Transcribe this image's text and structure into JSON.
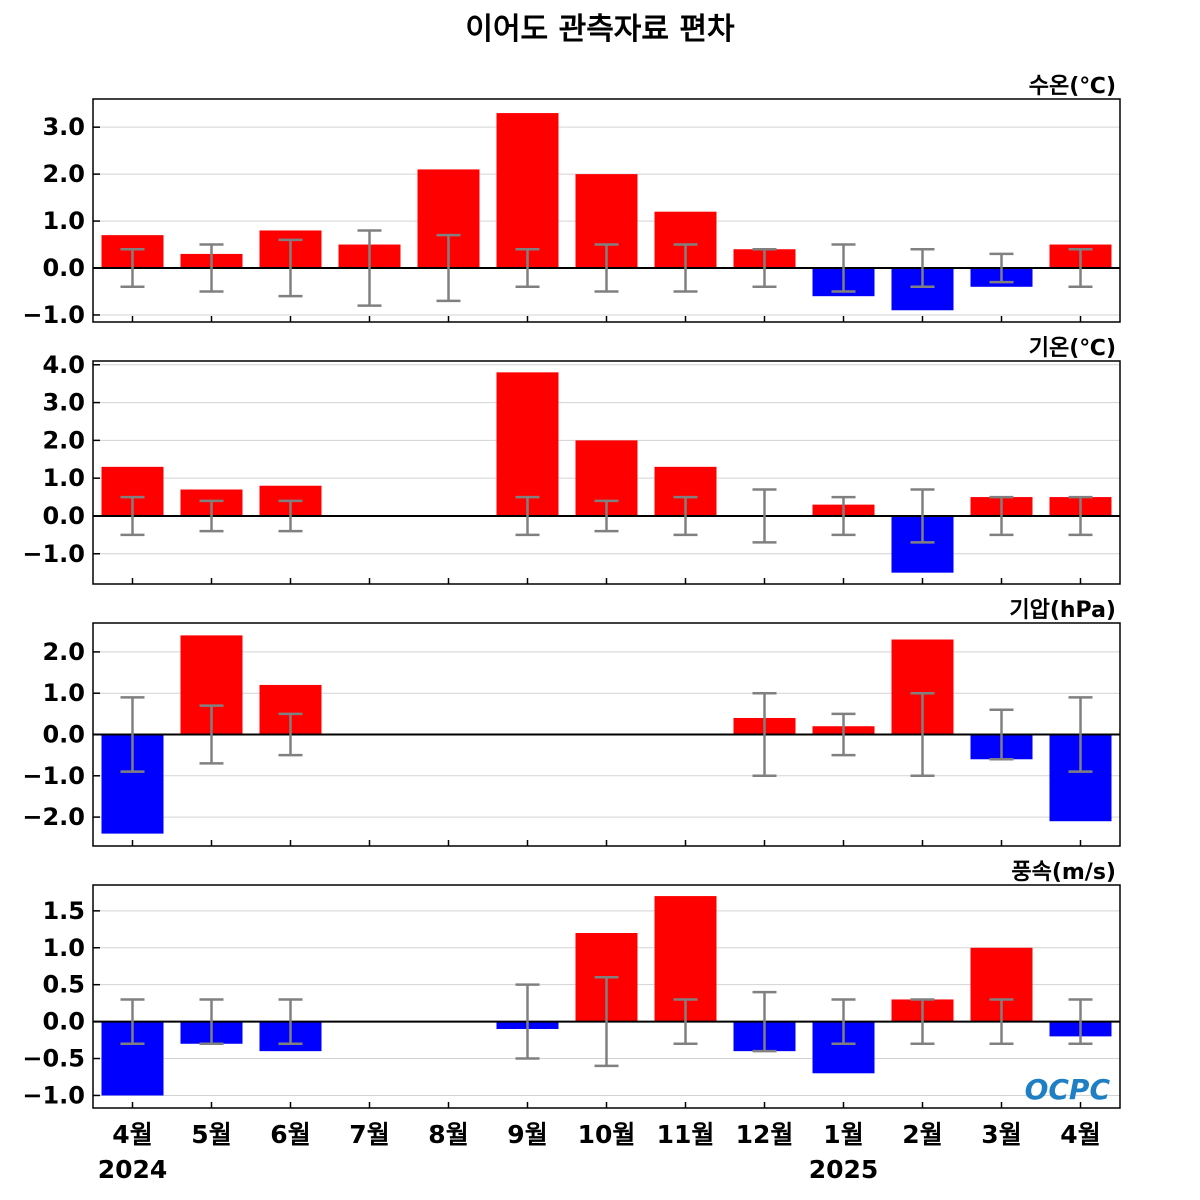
{
  "title": "이어도 관측자료 편차",
  "logo_text": "OCPC",
  "colors": {
    "positive": "#ff0000",
    "negative": "#0000ff",
    "error_bar": "#808080",
    "grid": "#d3d3d3",
    "zero_line": "#000000"
  },
  "chart_data": [
    {
      "type": "bar",
      "unit_label": "수온(℃)",
      "categories": [
        "4월",
        "5월",
        "6월",
        "7월",
        "8월",
        "9월",
        "10월",
        "11월",
        "12월",
        "1월",
        "2월",
        "3월",
        "4월"
      ],
      "values": [
        0.7,
        0.3,
        0.8,
        0.5,
        2.1,
        3.3,
        2.0,
        1.2,
        0.4,
        -0.6,
        -0.9,
        -0.4,
        0.5
      ],
      "error_upper": [
        0.4,
        0.5,
        0.6,
        0.8,
        0.7,
        0.4,
        0.5,
        0.5,
        0.4,
        0.5,
        0.4,
        0.3,
        0.4
      ],
      "error_lower": [
        -0.4,
        -0.5,
        -0.6,
        -0.8,
        -0.7,
        -0.4,
        -0.5,
        -0.5,
        -0.4,
        -0.5,
        -0.4,
        -0.3,
        -0.4
      ],
      "ylim": [
        -1.15,
        3.6
      ],
      "yticks": [
        -1.0,
        0.0,
        1.0,
        2.0,
        3.0
      ],
      "ytick_labels": [
        "−1.0",
        "0.0",
        "1.0",
        "2.0",
        "3.0"
      ],
      "grid": true
    },
    {
      "type": "bar",
      "unit_label": "기온(℃)",
      "categories": [
        "4월",
        "5월",
        "6월",
        "7월",
        "8월",
        "9월",
        "10월",
        "11월",
        "12월",
        "1월",
        "2월",
        "3월",
        "4월"
      ],
      "values": [
        1.3,
        0.7,
        0.8,
        null,
        null,
        3.8,
        2.0,
        1.3,
        0.0,
        0.3,
        -1.5,
        0.5,
        0.5
      ],
      "error_upper": [
        0.5,
        0.4,
        0.4,
        null,
        null,
        0.5,
        0.4,
        0.5,
        0.7,
        0.5,
        0.7,
        0.5,
        0.5
      ],
      "error_lower": [
        -0.5,
        -0.4,
        -0.4,
        null,
        null,
        -0.5,
        -0.4,
        -0.5,
        -0.7,
        -0.5,
        -0.7,
        -0.5,
        -0.5
      ],
      "ylim": [
        -1.8,
        4.1
      ],
      "yticks": [
        -1.0,
        0.0,
        1.0,
        2.0,
        3.0,
        4.0
      ],
      "ytick_labels": [
        "−1.0",
        "0.0",
        "1.0",
        "2.0",
        "3.0",
        "4.0"
      ],
      "grid": true
    },
    {
      "type": "bar",
      "unit_label": "기압(hPa)",
      "categories": [
        "4월",
        "5월",
        "6월",
        "7월",
        "8월",
        "9월",
        "10월",
        "11월",
        "12월",
        "1월",
        "2월",
        "3월",
        "4월"
      ],
      "values": [
        -2.4,
        2.4,
        1.2,
        null,
        null,
        null,
        null,
        null,
        0.4,
        0.2,
        2.3,
        -0.6,
        -2.1
      ],
      "error_upper": [
        0.9,
        0.7,
        0.5,
        null,
        null,
        null,
        null,
        null,
        1.0,
        0.5,
        1.0,
        0.6,
        0.9
      ],
      "error_lower": [
        -0.9,
        -0.7,
        -0.5,
        null,
        null,
        null,
        null,
        null,
        -1.0,
        -0.5,
        -1.0,
        -0.6,
        -0.9
      ],
      "ylim": [
        -2.7,
        2.7
      ],
      "yticks": [
        -2.0,
        -1.0,
        0.0,
        1.0,
        2.0
      ],
      "ytick_labels": [
        "−2.0",
        "−1.0",
        "0.0",
        "1.0",
        "2.0"
      ],
      "grid": true
    },
    {
      "type": "bar",
      "unit_label": "풍속(m/s)",
      "categories": [
        "4월",
        "5월",
        "6월",
        "7월",
        "8월",
        "9월",
        "10월",
        "11월",
        "12월",
        "1월",
        "2월",
        "3월",
        "4월"
      ],
      "values": [
        -1.0,
        -0.3,
        -0.4,
        null,
        null,
        -0.1,
        1.2,
        1.7,
        -0.4,
        -0.7,
        0.3,
        1.0,
        -0.2
      ],
      "error_upper": [
        0.3,
        0.3,
        0.3,
        null,
        null,
        0.5,
        0.6,
        0.3,
        0.4,
        0.3,
        0.3,
        0.3,
        0.3
      ],
      "error_lower": [
        -0.3,
        -0.3,
        -0.3,
        null,
        null,
        -0.5,
        -0.6,
        -0.3,
        -0.4,
        -0.3,
        -0.3,
        -0.3,
        -0.3
      ],
      "ylim": [
        -1.17,
        1.85
      ],
      "yticks": [
        -1.0,
        -0.5,
        0.0,
        0.5,
        1.0,
        1.5
      ],
      "ytick_labels": [
        "−1.0",
        "−0.5",
        "0.0",
        "0.5",
        "1.0",
        "1.5"
      ],
      "grid": true
    }
  ],
  "x_axis": {
    "months": [
      "4월",
      "5월",
      "6월",
      "7월",
      "8월",
      "9월",
      "10월",
      "11월",
      "12월",
      "1월",
      "2월",
      "3월",
      "4월"
    ],
    "years": [
      {
        "label": "2024",
        "index": 0
      },
      {
        "label": "2025",
        "index": 9
      }
    ]
  }
}
